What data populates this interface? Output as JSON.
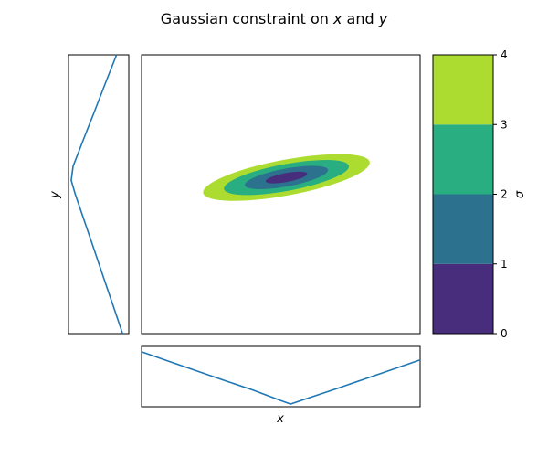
{
  "chart_data": {
    "type": "contour",
    "title_prefix": "Gaussian constraint on ",
    "title_var_x": "x",
    "title_mid": " and ",
    "title_var_y": "y",
    "xlabel": "x",
    "ylabel": "y",
    "colorbar_label": "σ",
    "grid": false,
    "sigma_levels": [
      0,
      1,
      2,
      3,
      4
    ],
    "colorbar_ticks": [
      "0",
      "1",
      "2",
      "3",
      "4"
    ],
    "level_colors": [
      "#472d7b",
      "#2c728e",
      "#28ae80",
      "#addc30"
    ],
    "line_color": "#1f77b4",
    "main_panel": {
      "xlim": [
        0,
        1
      ],
      "ylim": [
        0,
        1
      ],
      "center": [
        0.52,
        0.56
      ],
      "major_half_axis": 0.076,
      "minor_half_axis": 0.016,
      "angle_deg": -10.5
    },
    "x_marginal": {
      "x": [
        0,
        0.1,
        0.2,
        0.3,
        0.4,
        0.5,
        0.535,
        0.6,
        0.7,
        0.8,
        0.9,
        1.0
      ],
      "sigma": [
        2.95,
        2.4,
        1.86,
        1.32,
        0.79,
        0.19,
        0.0,
        0.34,
        0.87,
        1.41,
        1.95,
        2.49
      ]
    },
    "y_marginal": {
      "y": [
        1.0,
        0.9,
        0.8,
        0.7,
        0.6,
        0.55,
        0.5,
        0.4,
        0.3,
        0.2,
        0.1,
        0.0
      ],
      "sigma": [
        3.02,
        2.29,
        1.57,
        0.84,
        0.12,
        0.0,
        0.27,
        0.9,
        1.53,
        2.16,
        2.79,
        3.42
      ]
    }
  }
}
